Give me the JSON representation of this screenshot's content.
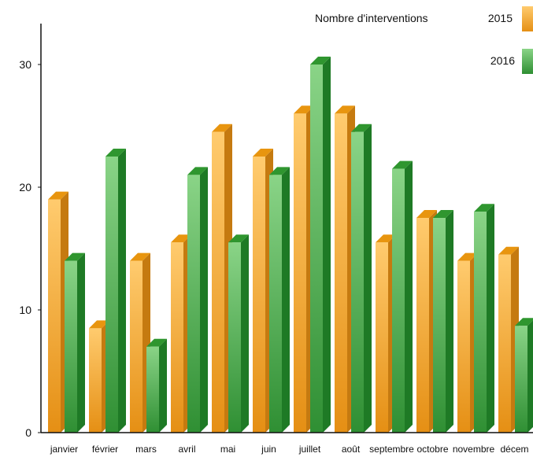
{
  "colors": {
    "s2015": {
      "front": "#F3A834",
      "light": "#FFD079",
      "side": "#C57A10",
      "top": "#E8950F"
    },
    "s2016": {
      "front": "#4BAE4B",
      "light": "#8FD58A",
      "side": "#1E7A25",
      "top": "#2F962F"
    }
  },
  "chart_data": {
    "type": "bar",
    "title": "Nombre d'interventions",
    "categories": [
      "janvier",
      "février",
      "mars",
      "avril",
      "mai",
      "juin",
      "juillet",
      "août",
      "septembre",
      "octobre",
      "novembre",
      "décem"
    ],
    "series": [
      {
        "name": "2015",
        "values": [
          19,
          8.5,
          14,
          15.5,
          24.5,
          22.5,
          26,
          26,
          15.5,
          17.5,
          14,
          14.5
        ]
      },
      {
        "name": "2016",
        "values": [
          14,
          22.5,
          7,
          21,
          15.5,
          21,
          30,
          24.5,
          21.5,
          17.5,
          18,
          8.7
        ]
      }
    ],
    "ylim": [
      0,
      30
    ],
    "yticks": [
      0,
      10,
      20,
      30
    ],
    "legend": "top-right",
    "grid": false
  }
}
